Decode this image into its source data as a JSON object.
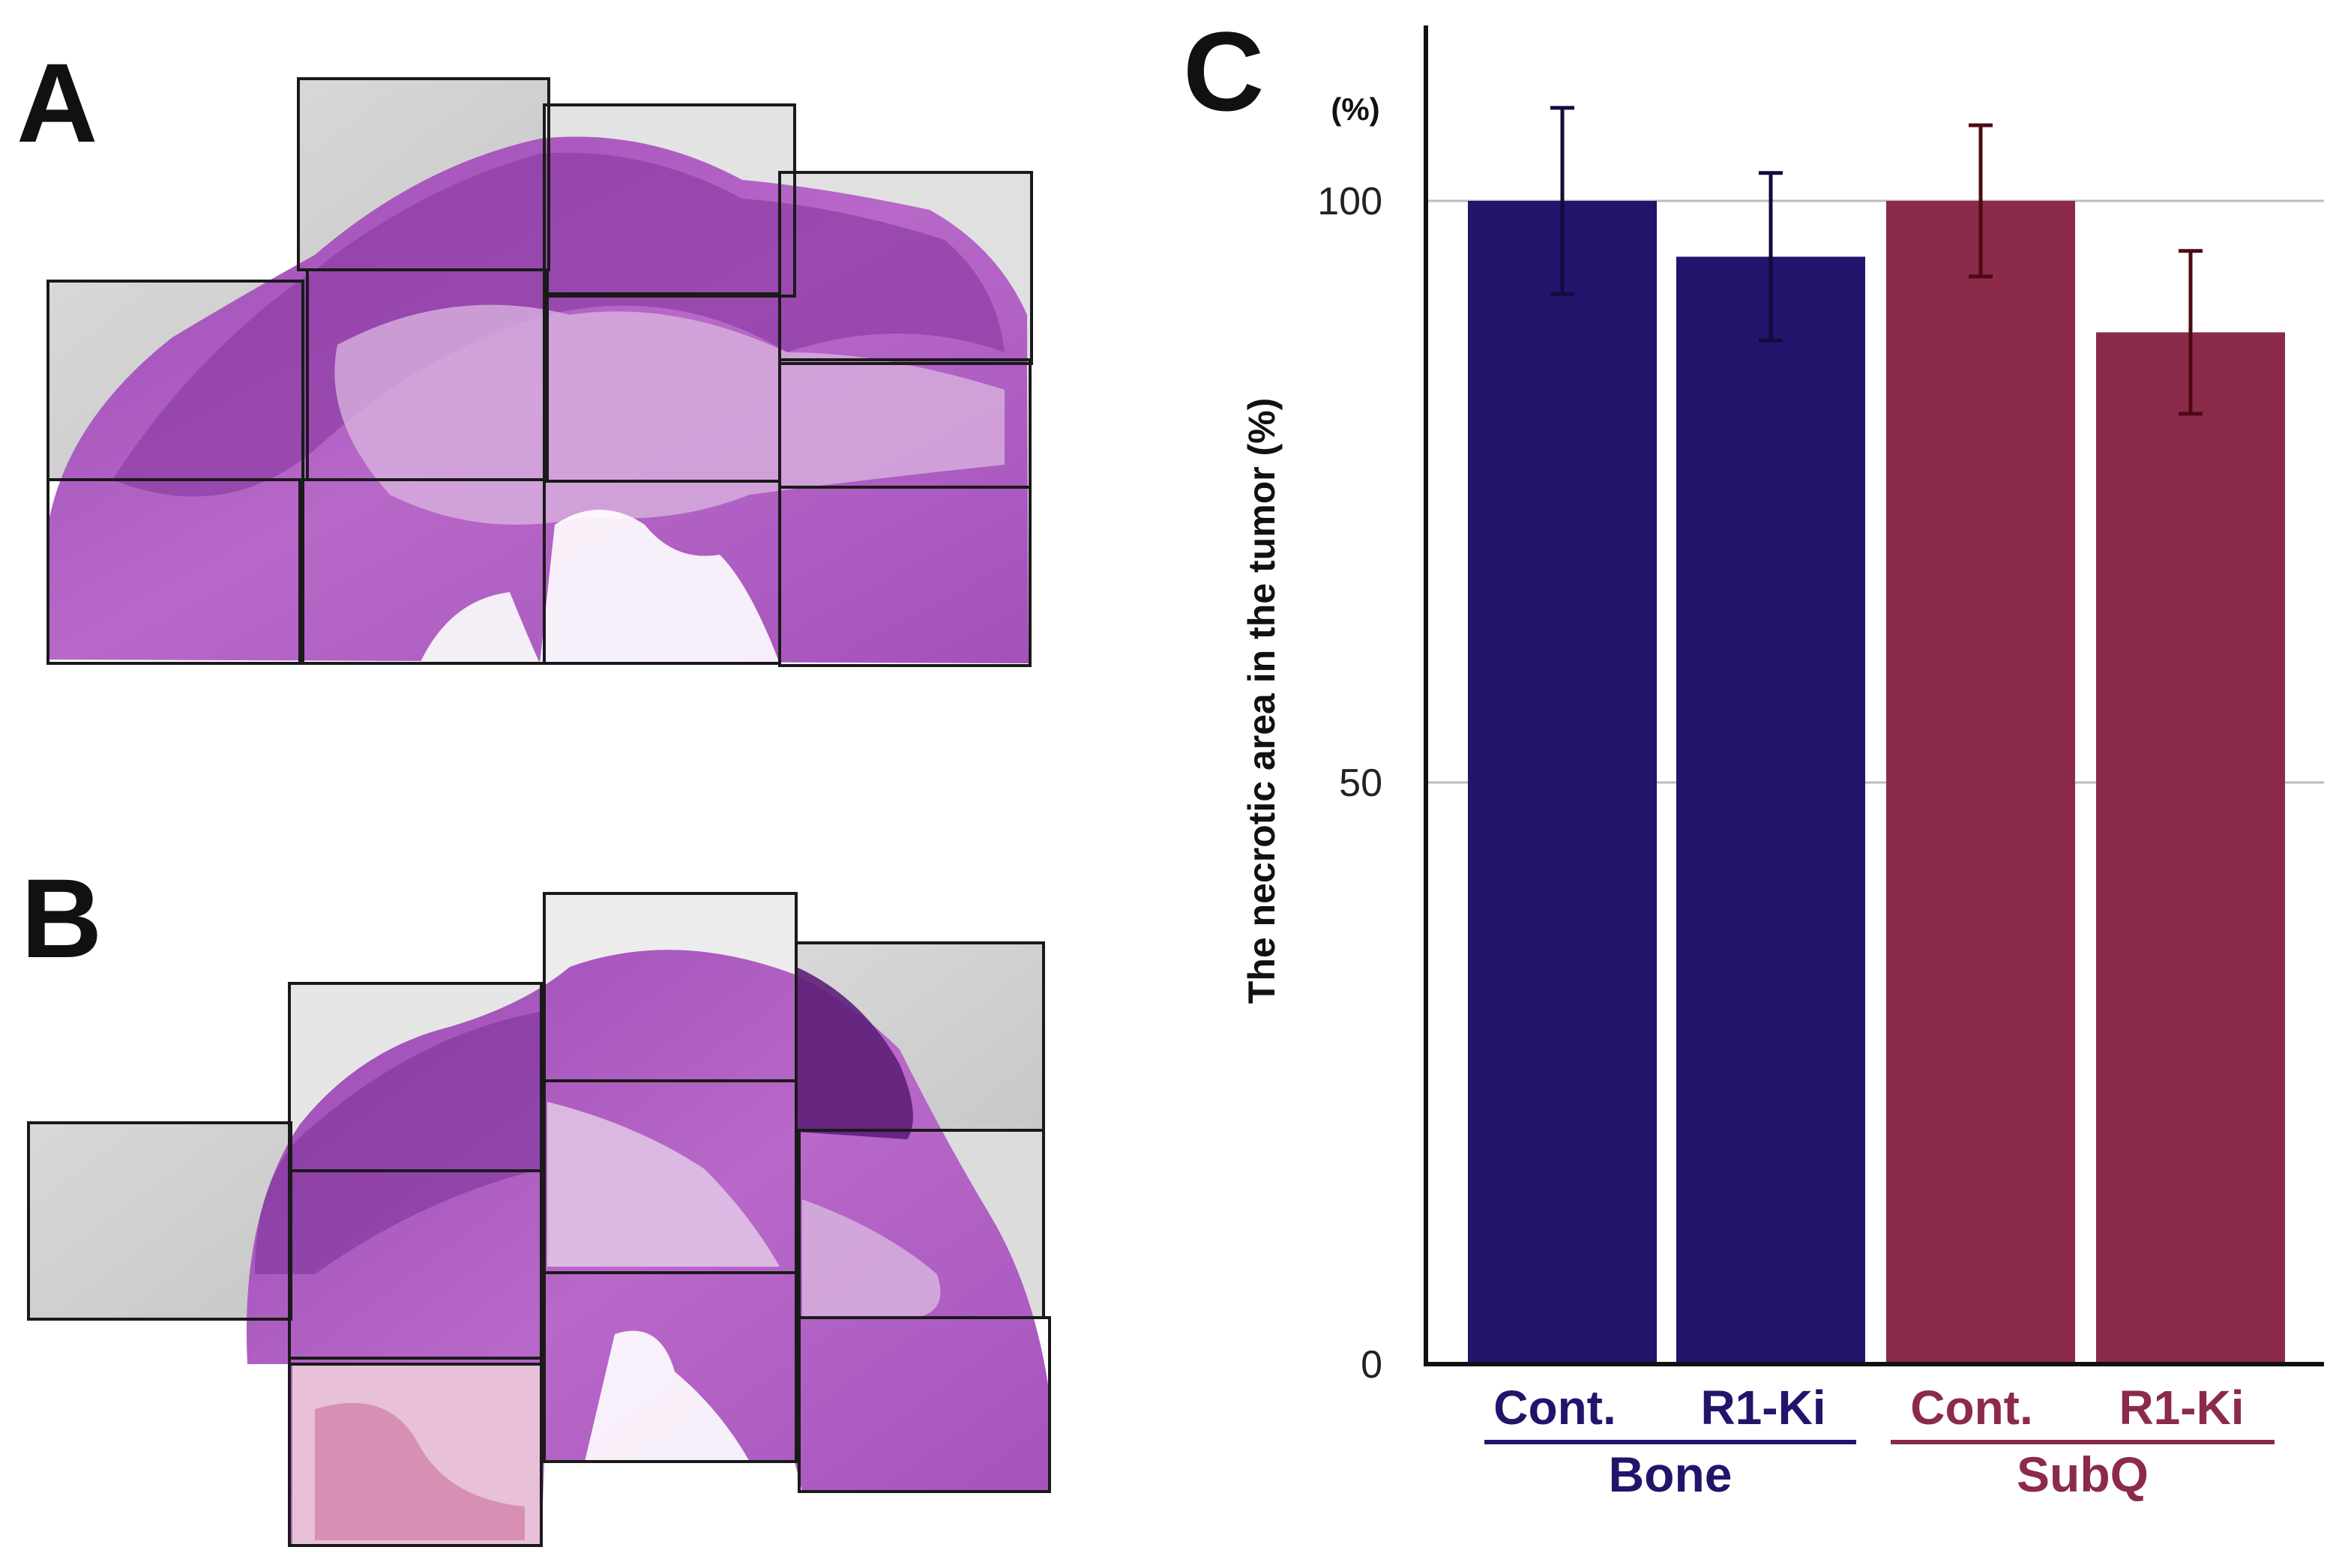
{
  "panels": {
    "a_label": "A",
    "b_label": "B",
    "c_label": "C"
  },
  "colors": {
    "bone": "#23146b",
    "subq": "#8c2a4a",
    "bone_err": "#140a3e",
    "subq_err": "#4e0a14",
    "tissue_dark": "#8a3ea6",
    "tissue_mid": "#b262c6",
    "tissue_light": "#d8a8df",
    "background_tile": "#d2d2d2"
  },
  "chart_data": {
    "type": "bar",
    "title": "",
    "ylabel": "The necrotic area in the tumor  (%)",
    "yunit_top": "(%)",
    "ylim": [
      0,
      115
    ],
    "yticks": [
      0,
      50,
      100
    ],
    "grid": true,
    "categories": [
      "Cont.",
      "R1-Ki",
      "Cont.",
      "R1-Ki"
    ],
    "groups": [
      {
        "name": "Bone",
        "members": [
          0,
          1
        ]
      },
      {
        "name": "SubQ",
        "members": [
          2,
          3
        ]
      }
    ],
    "values": [
      100,
      95.2,
      100,
      88.7
    ],
    "errors": [
      8.0,
      7.2,
      6.5,
      7.0
    ]
  }
}
